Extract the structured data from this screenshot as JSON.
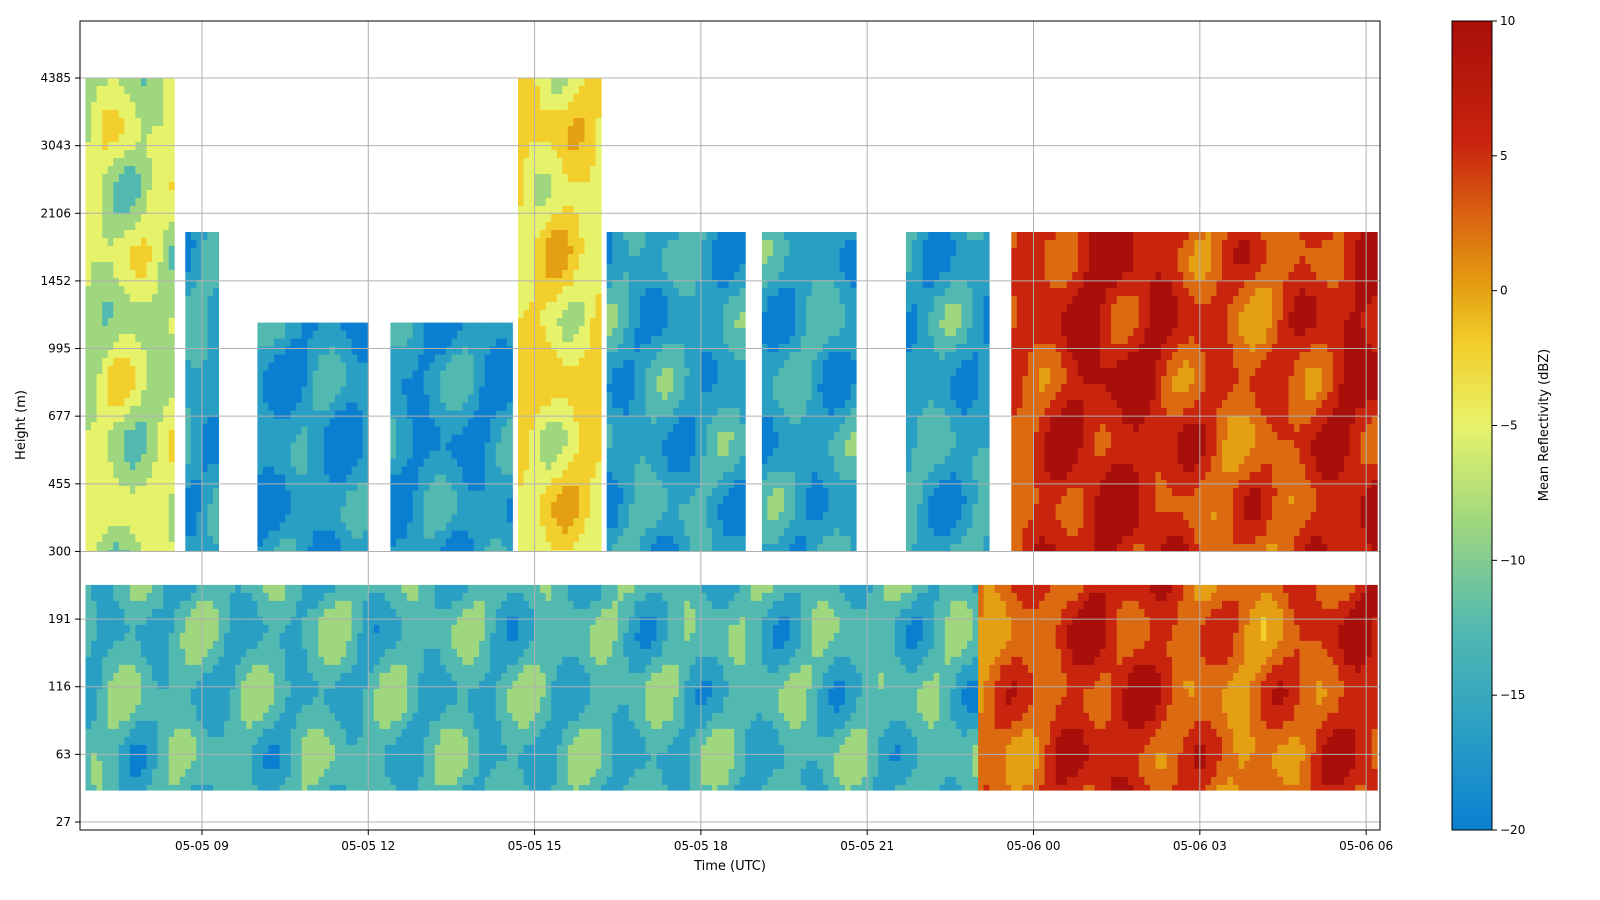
{
  "chart_data": {
    "type": "heatmap",
    "xlabel": "Time (UTC)",
    "ylabel": "Height (m)",
    "x_tick_labels": [
      "05-05 09",
      "05-05 12",
      "05-05 15",
      "05-05 18",
      "05-05 21",
      "05-06 00",
      "05-06 03",
      "05-06 06"
    ],
    "x_ticks_hours": [
      9,
      12,
      15,
      18,
      21,
      24,
      27,
      30
    ],
    "xlim_hours": [
      6.8,
      30.25
    ],
    "y_tick_labels": [
      "27",
      "63",
      "116",
      "191",
      "300",
      "455",
      "677",
      "995",
      "1452",
      "2106",
      "3043",
      "4385"
    ],
    "y_ticks_index": [
      0,
      1,
      2,
      3,
      4,
      5,
      6,
      7,
      8,
      9,
      10,
      11
    ],
    "colorbar": {
      "label": "Mean Reflectivity (dBZ)",
      "min": -20,
      "max": 10,
      "tick_labels": [
        "10",
        "5",
        "0",
        "−5",
        "−10",
        "−15",
        "−20"
      ],
      "ticks": [
        10,
        5,
        0,
        -5,
        -10,
        -15,
        -20
      ],
      "colors": [
        "#0a7fd1",
        "#2a9fc4",
        "#52b9b0",
        "#9fd77f",
        "#e6f36a",
        "#f2cf2c",
        "#e4a012",
        "#db6a10",
        "#c9240e",
        "#a80f0a"
      ]
    },
    "grid": true,
    "approx_cloud_segments": [
      {
        "t": [
          6.9,
          8.5
        ],
        "top_m": 4385,
        "base_m": 300,
        "mean_dbz": -8
      },
      {
        "t": [
          8.7,
          9.3
        ],
        "top_m": 1900,
        "base_m": 300,
        "mean_dbz": -15
      },
      {
        "t": [
          10.0,
          12.0
        ],
        "top_m": 1150,
        "base_m": 300,
        "mean_dbz": -16
      },
      {
        "t": [
          12.4,
          14.6
        ],
        "top_m": 1150,
        "base_m": 300,
        "mean_dbz": -16
      },
      {
        "t": [
          14.7,
          16.2
        ],
        "top_m": 4385,
        "base_m": 300,
        "mean_dbz": -5
      },
      {
        "t": [
          16.3,
          18.8
        ],
        "top_m": 1900,
        "base_m": 300,
        "mean_dbz": -15
      },
      {
        "t": [
          19.1,
          20.8
        ],
        "top_m": 1900,
        "base_m": 300,
        "mean_dbz": -15
      },
      {
        "t": [
          21.7,
          23.2
        ],
        "top_m": 1900,
        "base_m": 300,
        "mean_dbz": -15
      },
      {
        "t": [
          23.6,
          30.2
        ],
        "top_m": 1900,
        "base_m": 300,
        "mean_dbz": 5
      },
      {
        "t": [
          6.9,
          23.0
        ],
        "top_m": 240,
        "base_m": 40,
        "mean_dbz": -13
      },
      {
        "t": [
          23.0,
          30.2
        ],
        "top_m": 240,
        "base_m": 40,
        "mean_dbz": 4
      }
    ]
  }
}
